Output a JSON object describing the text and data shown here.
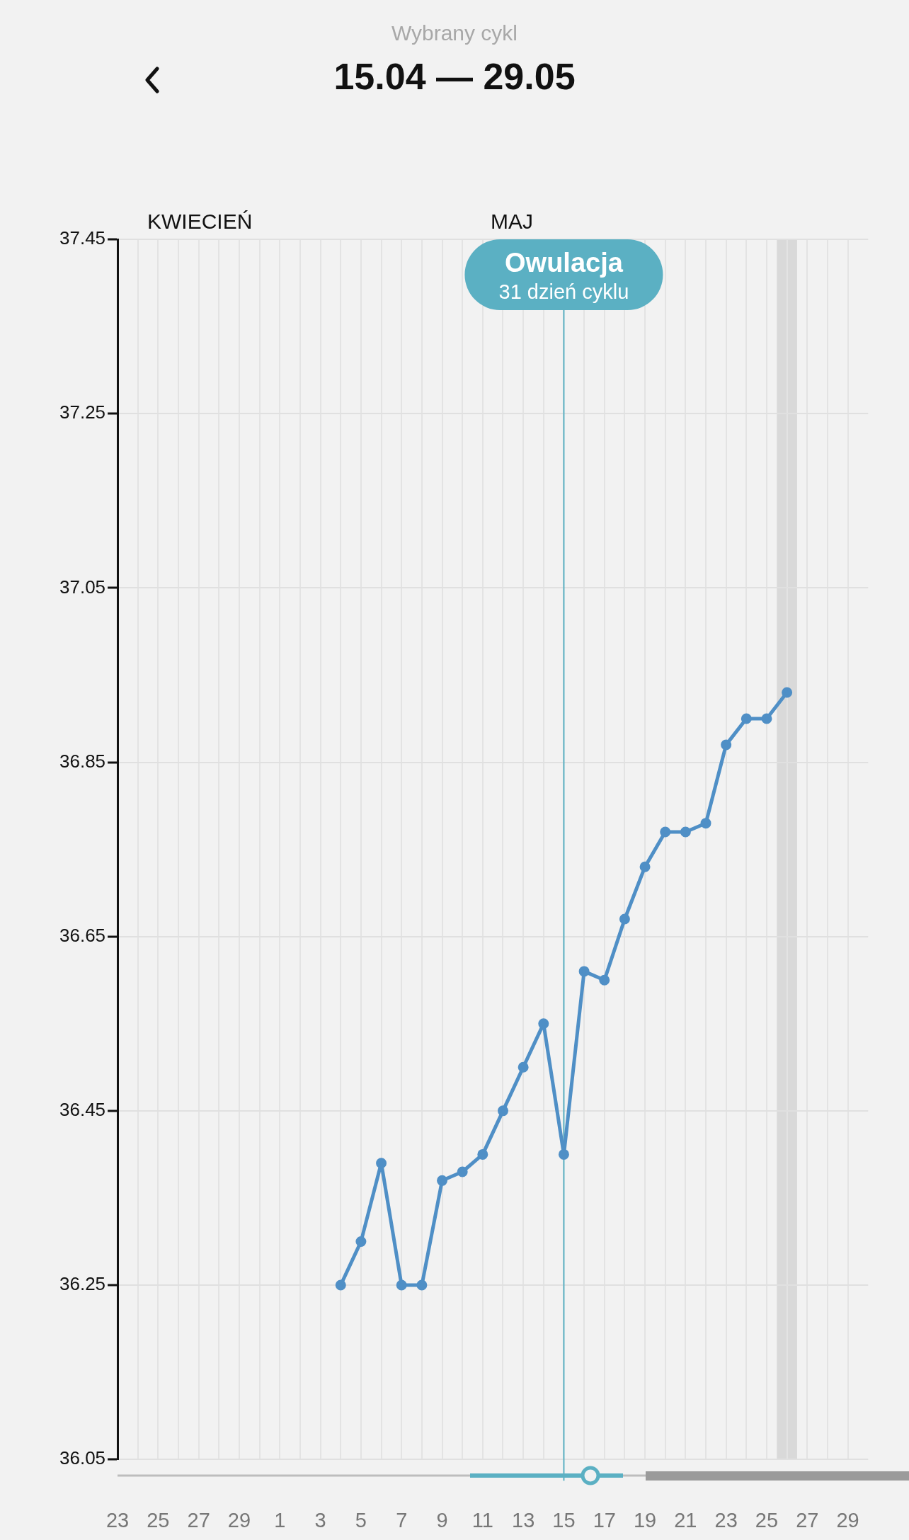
{
  "chart_data": {
    "type": "line",
    "title": "15.04 — 29.05",
    "subtitle": "Wybrany cykl",
    "annotations": [
      "KWIECIEŃ",
      "MAJ",
      {
        "text": "31 dzień cyklu",
        "x": "--05-15",
        "y": 37.39
      }
    ],
    "x": [
      "--05-04",
      "--05-05",
      "--05-06",
      "--05-07",
      "--05-08",
      "--05-09",
      "--05-10",
      "--05-11",
      "--05-12",
      "--05-13",
      "--05-14",
      "--05-15",
      "--05-16",
      "--05-17",
      "--05-18",
      "--05-19",
      "--05-20",
      "--05-21",
      "--05-22",
      "--05-23",
      "--05-24",
      "--05-25",
      "--05-26"
    ],
    "series": [
      {
        "color": "#4f8fc6",
        "values": [
          36.25,
          36.3,
          36.39,
          36.25,
          36.25,
          36.37,
          36.38,
          36.4,
          36.45,
          36.5,
          36.55,
          36.4,
          36.61,
          36.6,
          36.67,
          36.73,
          36.77,
          36.77,
          36.78,
          36.87,
          36.9,
          36.9,
          36.93
        ]
      }
    ],
    "xlim": [
      "--04-23",
      "--05-30"
    ],
    "xticks": [
      {
        "value": "--04-23",
        "label": "23"
      },
      {
        "value": "--04-24",
        "label": null
      },
      {
        "value": "--04-25",
        "label": "25"
      },
      {
        "value": "--04-26",
        "label": null
      },
      {
        "value": "--04-27",
        "label": "27"
      },
      {
        "value": "--04-28",
        "label": null
      },
      {
        "value": "--04-29",
        "label": "29"
      },
      {
        "value": "--04-30",
        "label": null
      },
      {
        "value": "--05-01",
        "label": "1"
      },
      {
        "value": "--05-02",
        "label": null
      },
      {
        "value": "--05-03",
        "label": "3"
      },
      {
        "value": "--05-04",
        "label": null
      },
      {
        "value": "--05-05",
        "label": "5"
      },
      {
        "value": "--05-06",
        "label": null
      },
      {
        "value": "--05-07",
        "label": "7"
      },
      {
        "value": "--05-08",
        "label": null
      },
      {
        "value": "--05-09",
        "label": "9"
      },
      {
        "value": "--05-10",
        "label": null
      },
      {
        "value": "--05-11",
        "label": "11"
      },
      {
        "value": "--05-12",
        "label": null
      },
      {
        "value": "--05-13",
        "label": "13"
      },
      {
        "value": "--05-14",
        "label": null
      },
      {
        "value": "--05-15",
        "label": "15"
      },
      {
        "value": "--05-16",
        "label": null
      },
      {
        "value": "--05-17",
        "label": "17"
      },
      {
        "value": "--05-18",
        "label": null
      },
      {
        "value": "--05-19",
        "label": "19"
      },
      {
        "value": "--05-20",
        "label": null
      },
      {
        "value": "--05-21",
        "label": "21"
      },
      {
        "value": "--05-22",
        "label": null
      },
      {
        "value": "--05-23",
        "label": "23"
      },
      {
        "value": "--05-24",
        "label": null
      },
      {
        "value": "--05-25",
        "label": "25"
      },
      {
        "value": "--05-26",
        "label": null
      },
      {
        "value": "--05-27",
        "label": "27"
      },
      {
        "value": "--05-28",
        "label": null
      },
      {
        "value": "--05-29",
        "label": "29"
      }
    ],
    "ylim": [
      36.05,
      37.45
    ],
    "yticks": [
      36.05,
      36.25,
      36.45,
      36.65,
      36.85,
      37.05,
      37.25,
      37.45
    ],
    "ref_lines": [
      {
        "axis": "x",
        "value": "--05-15",
        "label": "Owulacja",
        "color": "#5bb0c3"
      }
    ],
    "bands": [
      {
        "axis": "x",
        "from": "--05-25T12:00",
        "to": "--05-26T12:00",
        "color": "#d9d9d9"
      }
    ],
    "grid": true,
    "legend": false,
    "marker": "circle",
    "line_style": "solid"
  }
}
